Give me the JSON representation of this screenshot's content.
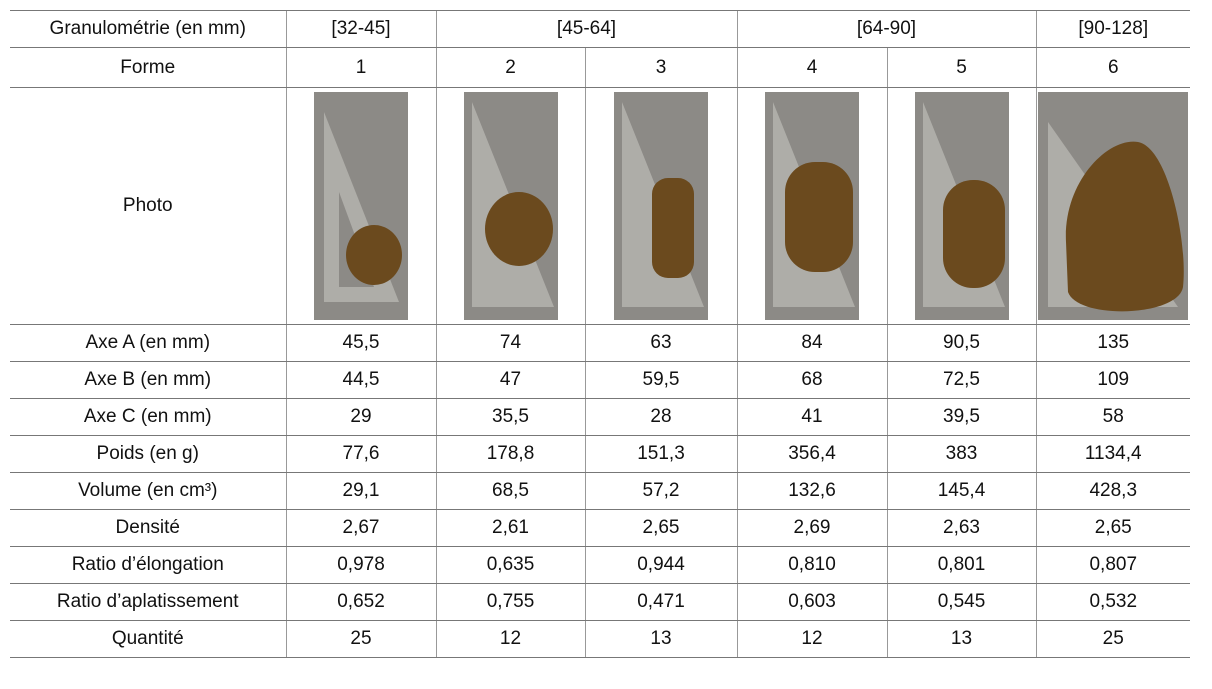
{
  "header": {
    "label": "Granulométrie (en mm)",
    "groups": [
      "[32-45]",
      "[45-64]",
      "[64-90]",
      "[90-128]"
    ]
  },
  "forme": {
    "label": "Forme",
    "values": [
      "1",
      "2",
      "3",
      "4",
      "5",
      "6"
    ]
  },
  "photo": {
    "label": "Photo"
  },
  "rows": [
    {
      "label": "Axe A (en mm)",
      "values": [
        "45,5",
        "74",
        "63",
        "84",
        "90,5",
        "135"
      ]
    },
    {
      "label": "Axe B (en mm)",
      "values": [
        "44,5",
        "47",
        "59,5",
        "68",
        "72,5",
        "109"
      ]
    },
    {
      "label": "Axe C (en mm)",
      "values": [
        "29",
        "35,5",
        "28",
        "41",
        "39,5",
        "58"
      ]
    },
    {
      "label": "Poids (en g)",
      "values": [
        "77,6",
        "178,8",
        "151,3",
        "356,4",
        "383",
        "1134,4"
      ]
    },
    {
      "label": "Volume (en cm³)",
      "values": [
        "29,1",
        "68,5",
        "57,2",
        "132,6",
        "145,4",
        "428,3"
      ]
    },
    {
      "label": "Densité",
      "values": [
        "2,67",
        "2,61",
        "2,65",
        "2,69",
        "2,63",
        "2,65"
      ]
    },
    {
      "label": "Ratio d’élongation",
      "values": [
        "0,978",
        "0,635",
        "0,944",
        "0,810",
        "0,801",
        "0,807"
      ]
    },
    {
      "label": "Ratio d’aplatissement",
      "values": [
        "0,652",
        "0,755",
        "0,471",
        "0,603",
        "0,545",
        "0,532"
      ]
    },
    {
      "label": "Quantité",
      "values": [
        "25",
        "12",
        "13",
        "12",
        "13",
        "25"
      ]
    }
  ]
}
